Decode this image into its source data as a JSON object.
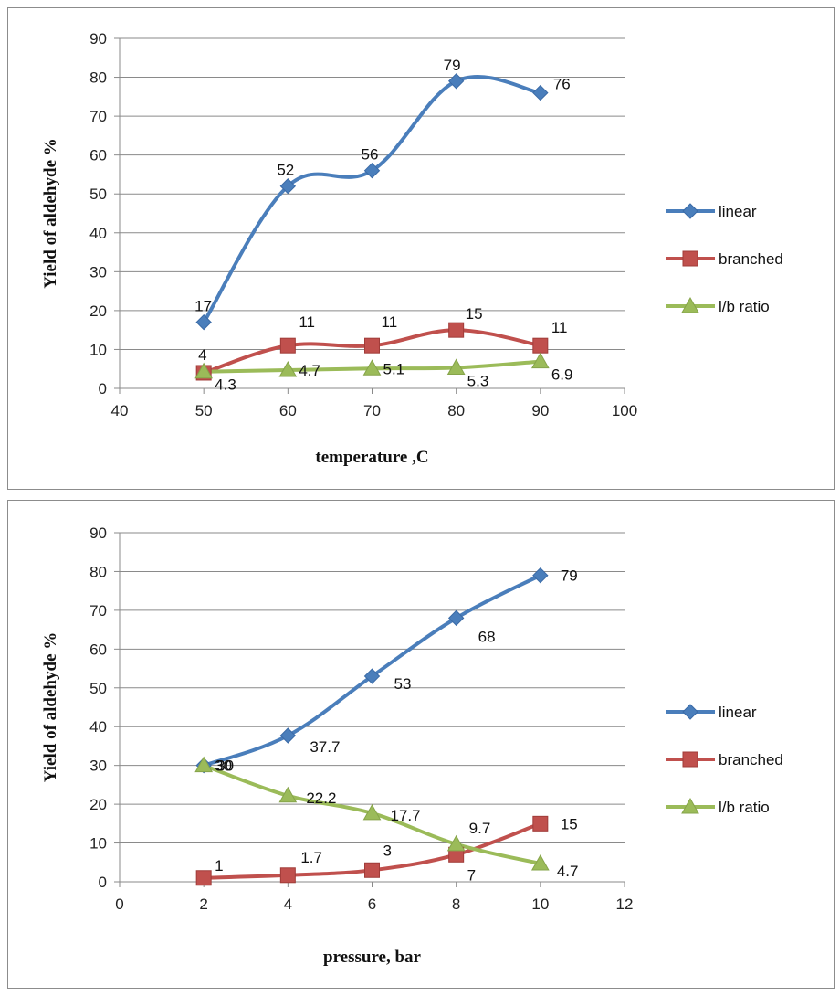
{
  "chart_data": [
    {
      "type": "line",
      "xlabel": "temperature ,C",
      "ylabel": "Yield of aldehyde %",
      "xlim": [
        40,
        100
      ],
      "ylim": [
        0,
        90
      ],
      "xticks": [
        40,
        50,
        60,
        70,
        80,
        90,
        100
      ],
      "yticks": [
        0,
        10,
        20,
        30,
        40,
        50,
        60,
        70,
        80,
        90
      ],
      "x": [
        50,
        60,
        70,
        80,
        90
      ],
      "grid": true,
      "legend_position": "right",
      "series": [
        {
          "name": "linear",
          "values": [
            17,
            52,
            56,
            79,
            76
          ],
          "labels": [
            "17",
            "52",
            "56",
            "79",
            "76"
          ],
          "color": "#4a7ebb",
          "marker": "diamond",
          "smooth": true
        },
        {
          "name": "branched",
          "values": [
            4,
            11,
            11,
            15,
            11
          ],
          "labels": [
            "4",
            "11",
            "11",
            "15",
            "11"
          ],
          "color": "#c0504d",
          "marker": "square",
          "smooth": true
        },
        {
          "name": "l/b ratio",
          "values": [
            4.3,
            4.7,
            5.1,
            5.3,
            6.9
          ],
          "labels": [
            "4.3",
            "4.7",
            "5.1",
            "5.3",
            "6.9"
          ],
          "color": "#9bbb59",
          "marker": "triangle",
          "smooth": true
        }
      ]
    },
    {
      "type": "line",
      "xlabel": "pressure, bar",
      "ylabel": "Yield of aldehyde %",
      "xlim": [
        0,
        12
      ],
      "ylim": [
        0,
        90
      ],
      "xticks": [
        0,
        2,
        4,
        6,
        8,
        10,
        12
      ],
      "yticks": [
        0,
        10,
        20,
        30,
        40,
        50,
        60,
        70,
        80,
        90
      ],
      "x": [
        2,
        4,
        6,
        8,
        10
      ],
      "grid": true,
      "legend_position": "right",
      "series": [
        {
          "name": "linear",
          "values": [
            30,
            37.7,
            53,
            68,
            79
          ],
          "labels": [
            "30",
            "37.7",
            "53",
            "68",
            "79"
          ],
          "color": "#4a7ebb",
          "marker": "diamond",
          "smooth": true
        },
        {
          "name": "branched",
          "values": [
            1,
            1.7,
            3,
            7,
            15
          ],
          "labels": [
            "1",
            "1.7",
            "3",
            "7",
            "15"
          ],
          "color": "#c0504d",
          "marker": "square",
          "smooth": true
        },
        {
          "name": "l/b ratio",
          "values": [
            30,
            22.2,
            17.7,
            9.7,
            4.7
          ],
          "labels": [
            "30",
            "22.2",
            "17.7",
            "9.7",
            "4.7"
          ],
          "color": "#9bbb59",
          "marker": "triangle",
          "smooth": true
        }
      ]
    }
  ]
}
